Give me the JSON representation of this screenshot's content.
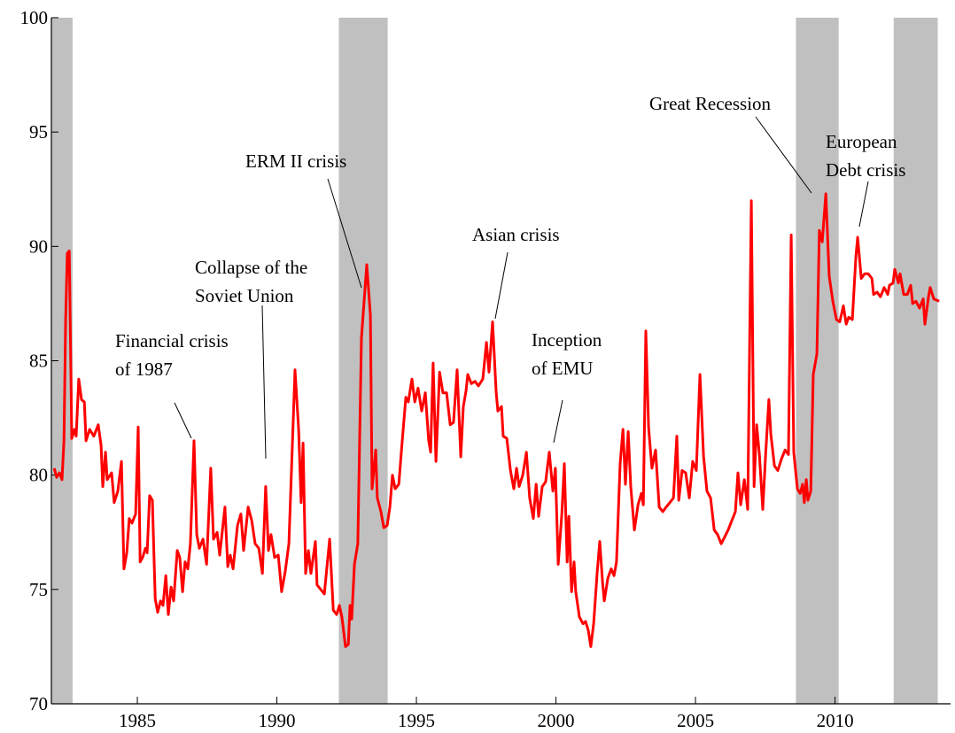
{
  "chart_data": {
    "type": "line",
    "color": "#ff0000",
    "shade_color": "#c0c0c0",
    "xlim": [
      1981.92,
      2014.14
    ],
    "ylim": [
      70,
      100
    ],
    "xticks": [
      1985,
      1990,
      1995,
      2000,
      2005,
      2010
    ],
    "yticks": [
      70,
      75,
      80,
      85,
      90,
      95,
      100
    ],
    "shaded_periods": [
      [
        1981.92,
        1982.68
      ],
      [
        1992.22,
        1993.97
      ],
      [
        2008.6,
        2010.13
      ],
      [
        2012.1,
        2013.68
      ]
    ],
    "annotations": [
      {
        "lines": [
          "Financial crisis",
          "of 1987"
        ]
      },
      {
        "lines": [
          "Collapse of the",
          "Soviet Union"
        ]
      },
      {
        "lines": [
          "ERM II crisis"
        ]
      },
      {
        "lines": [
          "Asian crisis"
        ]
      },
      {
        "lines": [
          "Inception",
          "of EMU"
        ]
      },
      {
        "lines": [
          "Great Recession"
        ]
      },
      {
        "lines": [
          "European",
          "Debt crisis"
        ]
      }
    ],
    "x": [
      1982.02,
      1982.11,
      1982.21,
      1982.3,
      1982.37,
      1982.43,
      1982.49,
      1982.56,
      1982.65,
      1982.75,
      1982.81,
      1982.9,
      1983.0,
      1983.1,
      1983.16,
      1983.29,
      1983.44,
      1983.6,
      1983.7,
      1983.76,
      1983.86,
      1983.92,
      1984.08,
      1984.17,
      1984.3,
      1984.43,
      1984.52,
      1984.62,
      1984.71,
      1984.81,
      1984.94,
      1985.03,
      1985.1,
      1985.19,
      1985.29,
      1985.35,
      1985.44,
      1985.54,
      1985.64,
      1985.73,
      1985.83,
      1985.92,
      1986.02,
      1986.11,
      1986.21,
      1986.3,
      1986.43,
      1986.52,
      1986.62,
      1986.71,
      1986.81,
      1986.9,
      1987.03,
      1987.13,
      1987.22,
      1987.35,
      1987.48,
      1987.63,
      1987.73,
      1987.86,
      1987.95,
      1988.14,
      1988.24,
      1988.33,
      1988.43,
      1988.59,
      1988.71,
      1988.81,
      1988.97,
      1989.1,
      1989.22,
      1989.35,
      1989.48,
      1989.6,
      1989.7,
      1989.79,
      1989.92,
      1990.05,
      1990.17,
      1990.3,
      1990.43,
      1990.65,
      1990.78,
      1990.87,
      1990.94,
      1991.03,
      1991.13,
      1991.22,
      1991.38,
      1991.44,
      1991.7,
      1991.89,
      1992.02,
      1992.14,
      1992.24,
      1992.33,
      1992.46,
      1992.56,
      1992.62,
      1992.68,
      1992.78,
      1992.9,
      1993.03,
      1993.22,
      1993.35,
      1993.41,
      1993.54,
      1993.6,
      1993.73,
      1993.83,
      1993.95,
      1994.05,
      1994.14,
      1994.24,
      1994.37,
      1994.46,
      1994.62,
      1994.71,
      1994.84,
      1994.94,
      1995.06,
      1995.19,
      1995.32,
      1995.44,
      1995.51,
      1995.6,
      1995.7,
      1995.83,
      1995.95,
      1996.08,
      1996.21,
      1996.33,
      1996.46,
      1996.59,
      1996.68,
      1996.78,
      1996.84,
      1996.97,
      1997.1,
      1997.22,
      1997.38,
      1997.51,
      1997.6,
      1997.73,
      1997.86,
      1997.92,
      1998.05,
      1998.11,
      1998.24,
      1998.37,
      1998.49,
      1998.59,
      1998.68,
      1998.81,
      1998.94,
      1999.06,
      1999.19,
      1999.29,
      1999.38,
      1999.51,
      1999.63,
      1999.76,
      1999.89,
      1999.98,
      2000.08,
      2000.21,
      2000.3,
      2000.4,
      2000.46,
      2000.56,
      2000.65,
      2000.71,
      2000.84,
      2000.97,
      2001.06,
      2001.16,
      2001.25,
      2001.35,
      2001.48,
      2001.57,
      2001.67,
      2001.73,
      2001.86,
      2001.98,
      2002.08,
      2002.17,
      2002.3,
      2002.4,
      2002.49,
      2002.59,
      2002.68,
      2002.81,
      2002.94,
      2003.06,
      2003.13,
      2003.22,
      2003.32,
      2003.44,
      2003.57,
      2003.7,
      2003.83,
      2003.95,
      2004.08,
      2004.21,
      2004.33,
      2004.4,
      2004.52,
      2004.65,
      2004.78,
      2004.9,
      2005.03,
      2005.16,
      2005.29,
      2005.41,
      2005.54,
      2005.67,
      2005.79,
      2005.92,
      2006.05,
      2006.17,
      2006.3,
      2006.43,
      2006.52,
      2006.62,
      2006.75,
      2006.87,
      2007.0,
      2007.1,
      2007.19,
      2007.29,
      2007.41,
      2007.51,
      2007.63,
      2007.7,
      2007.83,
      2007.95,
      2008.08,
      2008.21,
      2008.33,
      2008.43,
      2008.52,
      2008.65,
      2008.75,
      2008.84,
      2008.9,
      2008.97,
      2009.03,
      2009.13,
      2009.22,
      2009.35,
      2009.44,
      2009.54,
      2009.67,
      2009.79,
      2009.92,
      2010.05,
      2010.17,
      2010.3,
      2010.4,
      2010.49,
      2010.62,
      2010.75,
      2010.81,
      2010.94,
      2011.06,
      2011.19,
      2011.32,
      2011.38,
      2011.51,
      2011.63,
      2011.76,
      2011.89,
      2011.95,
      2012.08,
      2012.14,
      2012.27,
      2012.33,
      2012.46,
      2012.59,
      2012.71,
      2012.78,
      2012.9,
      2013.03,
      2013.16,
      2013.22,
      2013.35,
      2013.41,
      2013.54,
      2013.73
    ],
    "values": [
      80.3,
      79.9,
      80.1,
      79.8,
      81.5,
      86.8,
      89.7,
      89.8,
      81.6,
      82.0,
      81.7,
      84.2,
      83.3,
      83.2,
      81.5,
      82.0,
      81.7,
      82.2,
      81.3,
      79.5,
      81.0,
      79.8,
      80.1,
      78.8,
      79.3,
      80.6,
      75.9,
      76.6,
      78.1,
      77.9,
      78.3,
      82.1,
      76.2,
      76.4,
      76.8,
      76.6,
      79.1,
      78.9,
      74.6,
      74.0,
      74.5,
      74.3,
      75.6,
      73.9,
      75.1,
      74.5,
      76.7,
      76.4,
      74.9,
      76.2,
      75.9,
      77.0,
      81.5,
      77.4,
      76.8,
      77.2,
      76.1,
      80.3,
      77.2,
      77.5,
      76.5,
      78.6,
      76.0,
      76.5,
      75.9,
      77.8,
      78.3,
      76.7,
      78.6,
      78.0,
      77.0,
      76.8,
      75.7,
      79.5,
      76.7,
      77.4,
      76.4,
      76.5,
      74.9,
      75.8,
      77.0,
      84.6,
      82.0,
      78.8,
      81.4,
      75.7,
      76.7,
      75.7,
      77.1,
      75.2,
      74.8,
      77.2,
      74.1,
      73.9,
      74.3,
      73.8,
      72.5,
      72.6,
      74.3,
      73.7,
      76.1,
      77.0,
      86.0,
      89.2,
      87.0,
      79.4,
      81.1,
      79.0,
      78.4,
      77.7,
      77.8,
      78.6,
      80.0,
      79.4,
      79.6,
      81.0,
      83.4,
      83.2,
      84.2,
      83.2,
      83.8,
      82.8,
      83.6,
      81.5,
      81.0,
      84.9,
      80.6,
      84.5,
      83.6,
      83.6,
      82.2,
      82.3,
      84.6,
      80.8,
      83.0,
      83.7,
      84.4,
      84.0,
      84.1,
      83.9,
      84.2,
      85.8,
      84.5,
      86.7,
      83.6,
      82.8,
      83.0,
      81.7,
      81.6,
      80.2,
      79.4,
      80.3,
      79.5,
      80.0,
      81.0,
      79.0,
      78.1,
      79.6,
      78.2,
      79.5,
      79.7,
      81.0,
      79.3,
      80.3,
      76.1,
      78.3,
      80.5,
      76.2,
      78.2,
      74.9,
      76.2,
      74.9,
      73.8,
      73.5,
      73.6,
      73.2,
      72.5,
      73.5,
      75.8,
      77.1,
      75.3,
      74.5,
      75.5,
      75.9,
      75.6,
      76.2,
      80.5,
      82.0,
      79.6,
      81.9,
      79.5,
      77.6,
      78.7,
      79.2,
      78.7,
      86.3,
      82.1,
      80.3,
      81.1,
      78.6,
      78.4,
      78.6,
      78.8,
      79.0,
      81.7,
      78.9,
      80.2,
      80.1,
      79.0,
      80.6,
      80.2,
      84.4,
      80.8,
      79.3,
      79.0,
      77.6,
      77.4,
      77.0,
      77.3,
      77.6,
      78.0,
      78.4,
      80.1,
      78.7,
      79.8,
      78.5,
      92.0,
      79.5,
      82.2,
      80.9,
      78.5,
      80.8,
      83.3,
      81.8,
      80.4,
      80.2,
      80.7,
      81.1,
      80.9,
      90.5,
      81.0,
      79.4,
      79.2,
      79.6,
      78.8,
      79.8,
      78.9,
      79.3,
      84.4,
      85.3,
      90.7,
      90.2,
      92.3,
      88.7,
      87.6,
      86.8,
      86.7,
      87.4,
      86.6,
      86.9,
      86.8,
      89.6,
      90.4,
      88.6,
      88.8,
      88.8,
      88.6,
      87.9,
      88.0,
      87.8,
      88.2,
      87.9,
      88.3,
      88.4,
      89.0,
      88.4,
      88.8,
      87.9,
      87.9,
      88.3,
      87.5,
      87.6,
      87.3,
      87.7,
      86.6,
      87.8,
      88.2,
      87.7,
      87.6
    ]
  }
}
